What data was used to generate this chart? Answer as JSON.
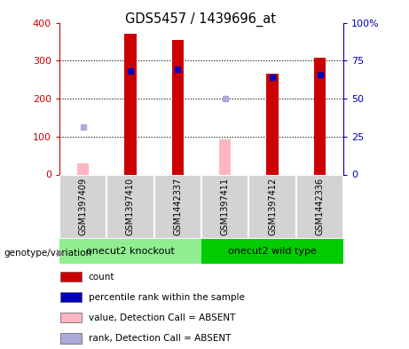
{
  "title": "GDS5457 / 1439696_at",
  "samples": [
    "GSM1397409",
    "GSM1397410",
    "GSM1442337",
    "GSM1397411",
    "GSM1397412",
    "GSM1442336"
  ],
  "count_values": [
    null,
    370,
    355,
    null,
    265,
    308
  ],
  "percentile_rank_left": [
    null,
    272,
    278,
    null,
    257,
    263
  ],
  "absent_value": [
    30,
    null,
    null,
    93,
    null,
    null
  ],
  "absent_rank": [
    125,
    null,
    null,
    200,
    null,
    null
  ],
  "groups": [
    {
      "label": "onecut2 knockout",
      "start": 0,
      "end": 3,
      "color": "#90EE90"
    },
    {
      "label": "onecut2 wild type",
      "start": 3,
      "end": 6,
      "color": "#00CC00"
    }
  ],
  "ylim_left": [
    0,
    400
  ],
  "ylim_right": [
    0,
    100
  ],
  "yticks_left": [
    0,
    100,
    200,
    300,
    400
  ],
  "yticks_right": [
    0,
    25,
    50,
    75,
    100
  ],
  "yticklabels_right": [
    "0",
    "25",
    "50",
    "75",
    "100%"
  ],
  "left_axis_color": "#CC0000",
  "right_axis_color": "#0000BB",
  "bar_width": 0.25,
  "count_color": "#CC0000",
  "percentile_color": "#0000BB",
  "absent_value_color": "#FFB6C1",
  "absent_rank_color": "#AAAADD",
  "bg_color": "#FFFFFF",
  "sample_area_color": "#D3D3D3",
  "legend_items": [
    {
      "color": "#CC0000",
      "label": "count"
    },
    {
      "color": "#0000BB",
      "label": "percentile rank within the sample"
    },
    {
      "color": "#FFB6C1",
      "label": "value, Detection Call = ABSENT"
    },
    {
      "color": "#AAAADD",
      "label": "rank, Detection Call = ABSENT"
    }
  ]
}
